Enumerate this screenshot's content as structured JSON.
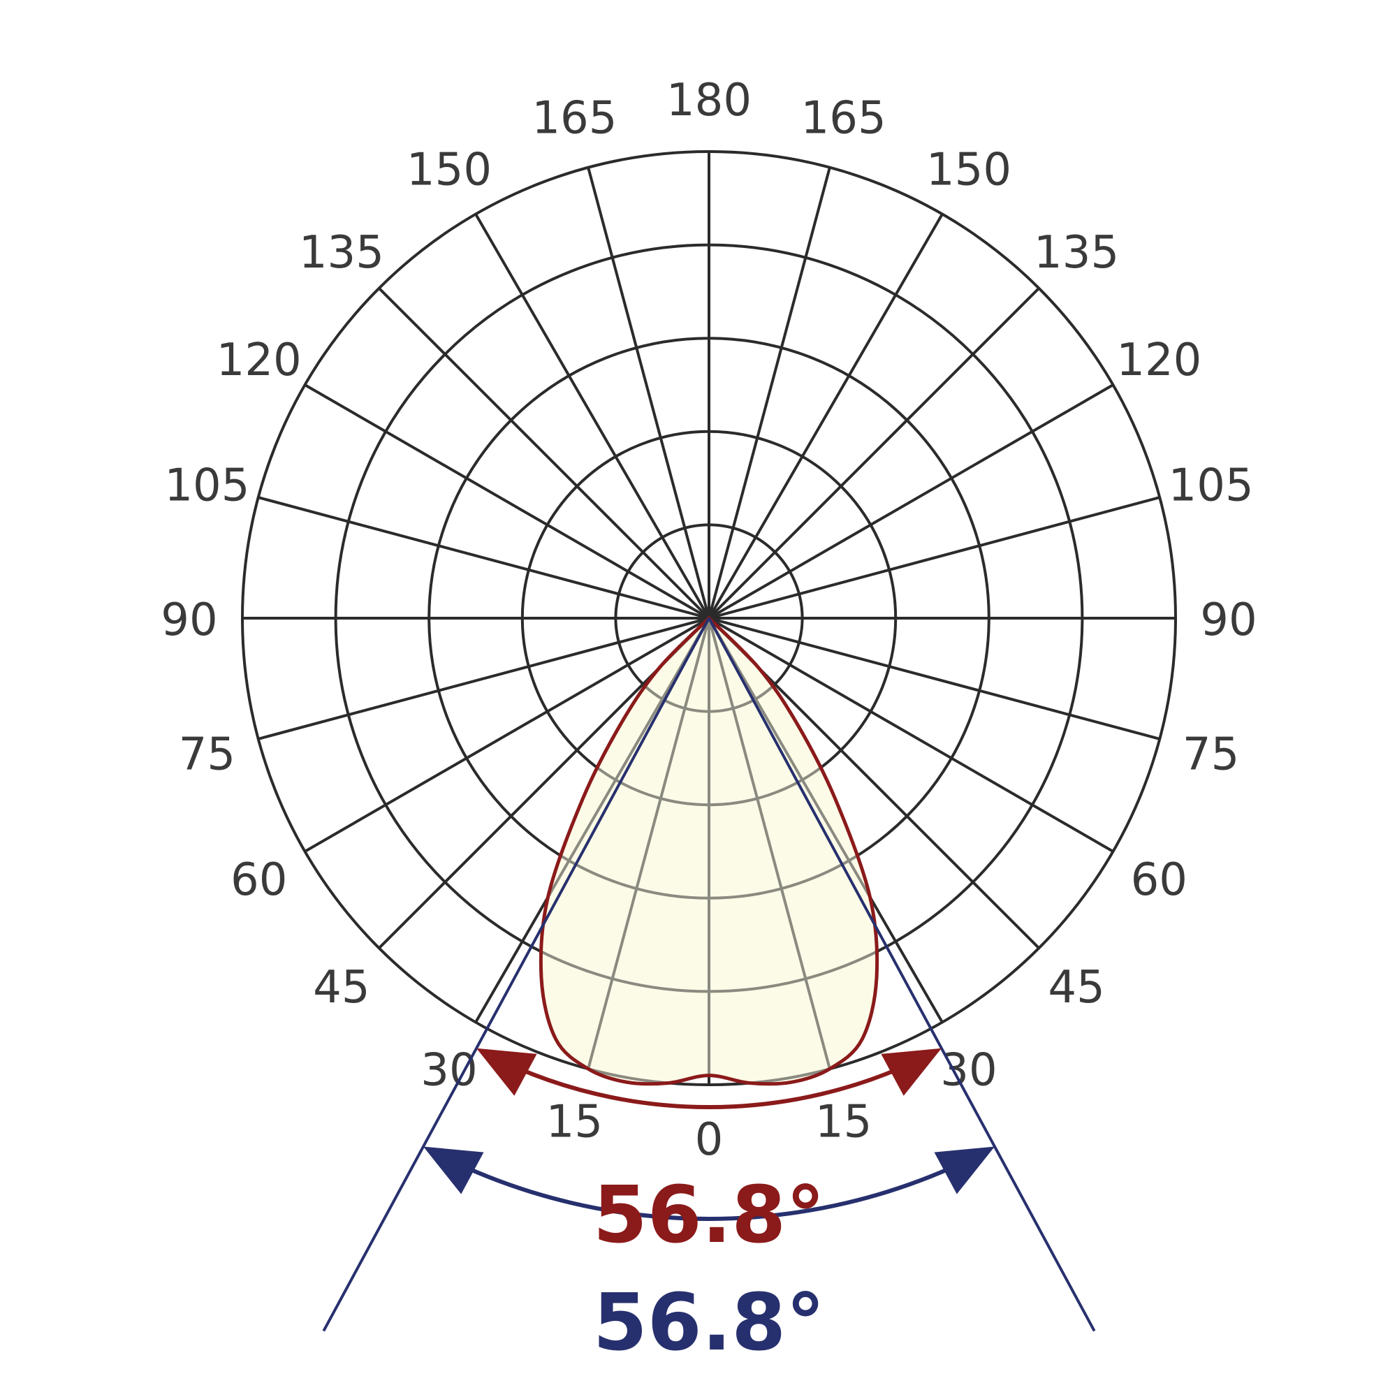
{
  "chart_data": {
    "type": "polar",
    "angle_unit": "deg",
    "angle_ticks": [
      0,
      15,
      30,
      45,
      60,
      75,
      90,
      105,
      120,
      135,
      150,
      165,
      180
    ],
    "radial_rings": 5,
    "grid": true,
    "series": [
      {
        "color": "#8b1a1a",
        "fill": "#fbfbe6",
        "curve": {
          "angle": [
            0,
            5,
            10,
            15,
            20,
            25,
            30,
            35,
            40,
            45,
            50
          ],
          "radius": [
            0.98,
            1.0,
            1.01,
            1.0,
            0.96,
            0.85,
            0.69,
            0.47,
            0.29,
            0.15,
            0.0
          ]
        },
        "beam_angle_label": "56.8°"
      },
      {
        "color": "#27306e",
        "beam_angle_label": "56.8°"
      }
    ],
    "colors": {
      "grid": "#2b2b2b",
      "tick_text": "#3a3a3a"
    }
  }
}
